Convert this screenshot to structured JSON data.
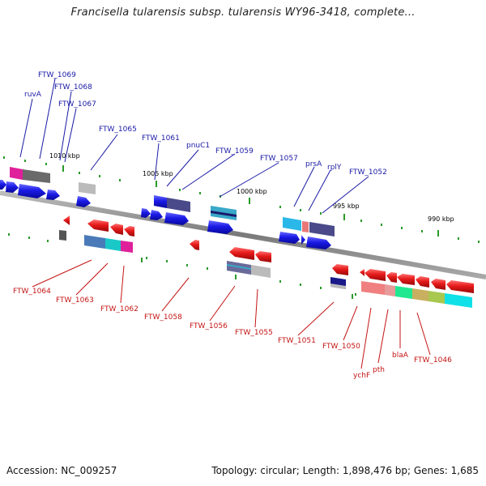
{
  "title": "Francisella tularensis subsp. tularensis WY96-3418, complete...",
  "footer": {
    "accession": "Accession: NC_009257",
    "stats": "Topology: circular; Length: 1,898,476 bp; Genes: 1,685"
  },
  "scale_labels": [
    "1010 kbp",
    "1005 kbp",
    "1000 kbp",
    "995 kbp",
    "990 kbp"
  ],
  "top_labels": [
    "ruvA",
    "FTW_1069",
    "FTW_1068",
    "FTW_1067",
    "FTW_1065",
    "FTW_1061",
    "pnuC1",
    "FTW_1059",
    "FTW_1057",
    "prsA",
    "rplY",
    "FTW_1052"
  ],
  "bottom_labels": [
    "FTW_1064",
    "FTW_1063",
    "FTW_1062",
    "FTW_1058",
    "FTW_1056",
    "FTW_1055",
    "FTW_1051",
    "FTW_1050",
    "ychF",
    "pth",
    "blaA",
    "FTW_1046"
  ],
  "colors": {
    "forward_strand": "#1a1ae6",
    "reverse_strand": "#e61a1a",
    "top_label": "#1a1aa6",
    "bottom_label": "#c41414",
    "backbone": "#8a8a8a",
    "tick": "#2a9a2a"
  }
}
